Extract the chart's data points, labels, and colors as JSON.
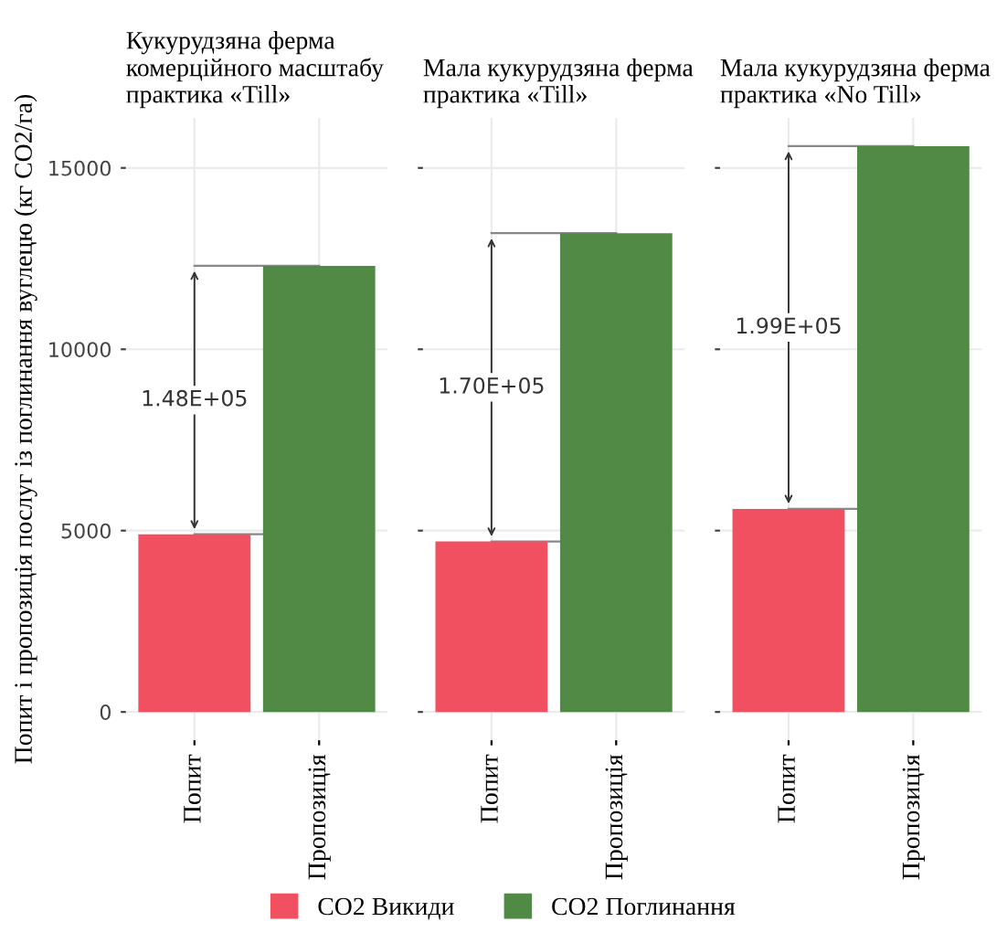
{
  "chart_data": [
    {
      "type": "bar",
      "title": "Кукурудзяна ферма\nкомерційного масштабу\nпрактика «Till»",
      "ylabel": "Попит і пропозиція послуг із поглинання вуглецю (кг CO2/га)",
      "categories": [
        "Попит",
        "Пропозиція"
      ],
      "series": [
        {
          "name": "CO2 Викиди",
          "color": "#f0505f",
          "values": [
            4900,
            null
          ]
        },
        {
          "name": "CO2 Поглинання",
          "color": "#518a44",
          "values": [
            null,
            12300
          ]
        }
      ],
      "annotations": [
        "1.48E+05"
      ],
      "ref_lines": [
        {
          "axis": "y",
          "value": 4900,
          "color": "#888888"
        },
        {
          "axis": "y",
          "value": 12300,
          "color": "#888888"
        }
      ],
      "ylim": [
        -780,
        16380
      ],
      "yticks": [
        0,
        5000,
        10000,
        15000
      ],
      "grid": true,
      "legend": "bottom"
    },
    {
      "type": "bar",
      "title": "Мала кукурудзяна ферма\nпрактика «Till»",
      "categories": [
        "Попит",
        "Пропозиція"
      ],
      "series": [
        {
          "color": "#f0505f",
          "values": [
            4700,
            null
          ]
        },
        {
          "color": "#518a44",
          "values": [
            null,
            13200
          ]
        }
      ],
      "annotations": [
        "1.70E+05"
      ],
      "ref_lines": [
        {
          "axis": "y",
          "value": 4700,
          "color": "#888888"
        },
        {
          "axis": "y",
          "value": 13200,
          "color": "#888888"
        }
      ],
      "ylim": [
        -780,
        16380
      ],
      "yticks": [
        0,
        5000,
        10000,
        15000
      ],
      "grid": true,
      "tick_labels": "x"
    },
    {
      "type": "bar",
      "title": "Мала кукурудзяна ферма\nпрактика «No Till»",
      "categories": [
        "Попит",
        "Пропозиція"
      ],
      "series": [
        {
          "color": "#f0505f",
          "values": [
            5600,
            null
          ]
        },
        {
          "color": "#518a44",
          "values": [
            null,
            15600
          ]
        }
      ],
      "annotations": [
        "1.99E+05"
      ],
      "ref_lines": [
        {
          "axis": "y",
          "value": 5600,
          "color": "#888888"
        },
        {
          "axis": "y",
          "value": 15600,
          "color": "#888888"
        }
      ],
      "ylim": [
        -780,
        16380
      ],
      "yticks": [
        0,
        5000,
        10000,
        15000
      ],
      "grid": true,
      "tick_labels": "x"
    }
  ]
}
